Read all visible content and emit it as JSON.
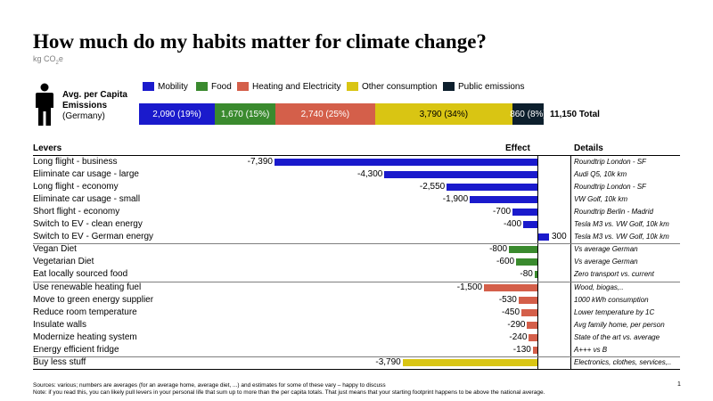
{
  "title": "How much do my habits matter for climate change?",
  "unit": {
    "main": "kg CO",
    "sub": "2",
    "tail": "e"
  },
  "colors": {
    "mobility": "#1a1acc",
    "food": "#3a8a2e",
    "heating": "#d45f4a",
    "other": "#d9c513",
    "public": "#0d1f2d"
  },
  "legend": [
    {
      "label": "Mobility",
      "color": "#1a1acc"
    },
    {
      "label": "Food",
      "color": "#3a8a2e"
    },
    {
      "label": "Heating and Electricity",
      "color": "#d45f4a"
    },
    {
      "label": "Other consumption",
      "color": "#d9c513"
    },
    {
      "label": "Public emissions",
      "color": "#0d1f2d"
    }
  ],
  "avg_label": {
    "line1": "Avg. per Capita",
    "line2": "Emissions",
    "line3": "(Germany)"
  },
  "total_label": "11,150 Total",
  "headers": {
    "levers": "Levers",
    "effect": "Effect",
    "details": "Details"
  },
  "footnotes": {
    "sources": "Sources: various; numbers are averages (for an average home, average diet, ...) and estimates for some of these vary – happy to discuss",
    "note": "Note: if you read this, you can likely pull levers in your personal life that sum up to more than the per capita totals. That just means that your starting footprint happens to be above the national average."
  },
  "page_number": "1",
  "chart_data": [
    {
      "type": "bar",
      "orientation": "horizontal-stacked",
      "categories": [
        "Avg. per Capita Emissions (Germany)"
      ],
      "series": [
        {
          "name": "Mobility",
          "values": [
            2090
          ],
          "label": "2,090 (19%)",
          "color": "#1a1acc"
        },
        {
          "name": "Food",
          "values": [
            1670
          ],
          "label": "1,670 (15%)",
          "color": "#3a8a2e"
        },
        {
          "name": "Heating and Electricity",
          "values": [
            2740
          ],
          "label": "2,740 (25%)",
          "color": "#d45f4a"
        },
        {
          "name": "Other consumption",
          "values": [
            3790
          ],
          "label": "3,790 (34%)",
          "color": "#d9c513"
        },
        {
          "name": "Public emissions",
          "values": [
            860
          ],
          "label": "860 (8%)",
          "color": "#0d1f2d"
        }
      ],
      "total": 11150
    },
    {
      "type": "bar",
      "orientation": "horizontal",
      "xlabel": "Effect",
      "rows": [
        {
          "lever": "Long flight - business",
          "value": -7390,
          "label": "-7,390",
          "category": "mobility",
          "detail": "Roundtrip London - SF"
        },
        {
          "lever": "Eliminate car usage - large",
          "value": -4300,
          "label": "-4,300",
          "category": "mobility",
          "detail": "Audi Q5, 10k km"
        },
        {
          "lever": "Long flight - economy",
          "value": -2550,
          "label": "-2,550",
          "category": "mobility",
          "detail": "Roundtrip London - SF"
        },
        {
          "lever": "Eliminate car usage - small",
          "value": -1900,
          "label": "-1,900",
          "category": "mobility",
          "detail": "VW Golf, 10k km"
        },
        {
          "lever": "Short flight - economy",
          "value": -700,
          "label": "-700",
          "category": "mobility",
          "detail": "Roundtrip Berlin - Madrid"
        },
        {
          "lever": "Switch to EV - clean energy",
          "value": -400,
          "label": "-400",
          "category": "mobility",
          "detail": "Tesla M3 vs. VW Golf, 10k km"
        },
        {
          "lever": "Switch to EV - German energy",
          "value": 300,
          "label": "300",
          "category": "mobility",
          "detail": "Tesla M3 vs. VW Golf, 10k km"
        },
        {
          "lever": "Vegan Diet",
          "value": -800,
          "label": "-800",
          "category": "food",
          "detail": "Vs average German"
        },
        {
          "lever": "Vegetarian Diet",
          "value": -600,
          "label": "-600",
          "category": "food",
          "detail": "Vs average German"
        },
        {
          "lever": "Eat locally sourced food",
          "value": -80,
          "label": "-80",
          "category": "food",
          "detail": "Zero transport vs. current"
        },
        {
          "lever": "Use renewable heating fuel",
          "value": -1500,
          "label": "-1,500",
          "category": "heating",
          "detail": "Wood, biogas,.."
        },
        {
          "lever": "Move to green energy supplier",
          "value": -530,
          "label": "-530",
          "category": "heating",
          "detail": "1000 kWh consumption"
        },
        {
          "lever": "Reduce room temperature",
          "value": -450,
          "label": "-450",
          "category": "heating",
          "detail": "Lower temperature by 1C"
        },
        {
          "lever": "Insulate walls",
          "value": -290,
          "label": "-290",
          "category": "heating",
          "detail": "Avg family home, per person"
        },
        {
          "lever": "Modernize heating system",
          "value": -240,
          "label": "-240",
          "category": "heating",
          "detail": "State of the art vs. average"
        },
        {
          "lever": "Energy efficient fridge",
          "value": -130,
          "label": "-130",
          "category": "heating",
          "detail": "A+++ vs B"
        },
        {
          "lever": "Buy less stuff",
          "value": -3790,
          "label": "-3,790",
          "category": "other",
          "detail": "Electronics, clothes, services,.."
        }
      ]
    }
  ]
}
